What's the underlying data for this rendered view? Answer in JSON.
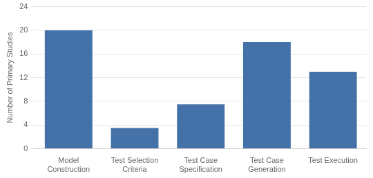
{
  "chart_data": {
    "type": "bar",
    "categories": [
      "Model\nConstruction",
      "Test Selection\nCriteria",
      "Test Case\nSpecification",
      "Test Case\nGeneration",
      "Test Execution"
    ],
    "values": [
      20,
      3.5,
      7.5,
      18,
      13
    ],
    "color": "#4472a8",
    "ylabel": "Number of Primary Studies",
    "ylim": [
      0,
      24
    ],
    "yticks": [
      0,
      4,
      8,
      12,
      16,
      20,
      24
    ],
    "grid": true
  }
}
